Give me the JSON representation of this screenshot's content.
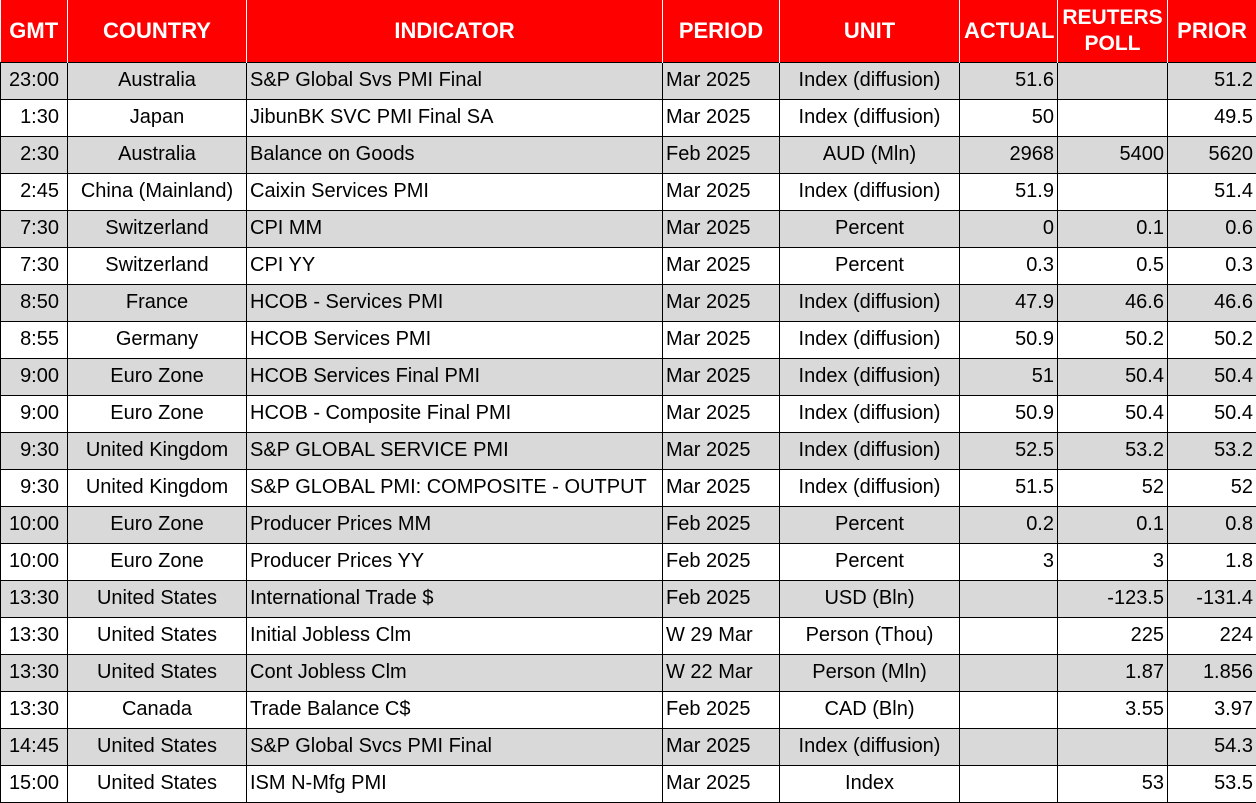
{
  "headers": {
    "gmt": "GMT",
    "country": "COUNTRY",
    "indicator": "INDICATOR",
    "period": "PERIOD",
    "unit": "UNIT",
    "actual": "ACTUAL",
    "reuters_poll_line1": "REUTERS",
    "reuters_poll_line2": "POLL",
    "prior": "PRIOR"
  },
  "colors": {
    "header_bg": "#ff0000",
    "header_text": "#ffffff",
    "row_shade": "#d9d9d9"
  },
  "rows": [
    {
      "gmt": "23:00",
      "country": "Australia",
      "indicator": "S&P Global Svs PMI Final",
      "period": "Mar 2025",
      "unit": "Index (diffusion)",
      "actual": "51.6",
      "poll": "",
      "prior": "51.2"
    },
    {
      "gmt": "1:30",
      "country": "Japan",
      "indicator": "JibunBK SVC PMI Final SA",
      "period": "Mar 2025",
      "unit": "Index (diffusion)",
      "actual": "50",
      "poll": "",
      "prior": "49.5"
    },
    {
      "gmt": "2:30",
      "country": "Australia",
      "indicator": "Balance on Goods",
      "period": "Feb 2025",
      "unit": "AUD (Mln)",
      "actual": "2968",
      "poll": "5400",
      "prior": "5620"
    },
    {
      "gmt": "2:45",
      "country": "China (Mainland)",
      "indicator": "Caixin Services PMI",
      "period": "Mar 2025",
      "unit": "Index (diffusion)",
      "actual": "51.9",
      "poll": "",
      "prior": "51.4"
    },
    {
      "gmt": "7:30",
      "country": "Switzerland",
      "indicator": "CPI MM",
      "period": "Mar 2025",
      "unit": "Percent",
      "actual": "0",
      "poll": "0.1",
      "prior": "0.6"
    },
    {
      "gmt": "7:30",
      "country": "Switzerland",
      "indicator": "CPI YY",
      "period": "Mar 2025",
      "unit": "Percent",
      "actual": "0.3",
      "poll": "0.5",
      "prior": "0.3"
    },
    {
      "gmt": "8:50",
      "country": "France",
      "indicator": "HCOB - Services PMI",
      "period": "Mar 2025",
      "unit": "Index (diffusion)",
      "actual": "47.9",
      "poll": "46.6",
      "prior": "46.6"
    },
    {
      "gmt": "8:55",
      "country": "Germany",
      "indicator": "HCOB Services PMI",
      "period": "Mar 2025",
      "unit": "Index (diffusion)",
      "actual": "50.9",
      "poll": "50.2",
      "prior": "50.2"
    },
    {
      "gmt": "9:00",
      "country": "Euro Zone",
      "indicator": "HCOB Services Final PMI",
      "period": "Mar 2025",
      "unit": "Index (diffusion)",
      "actual": "51",
      "poll": "50.4",
      "prior": "50.4"
    },
    {
      "gmt": "9:00",
      "country": "Euro Zone",
      "indicator": "HCOB - Composite Final PMI",
      "period": "Mar 2025",
      "unit": "Index (diffusion)",
      "actual": "50.9",
      "poll": "50.4",
      "prior": "50.4"
    },
    {
      "gmt": "9:30",
      "country": "United Kingdom",
      "indicator": "S&P GLOBAL SERVICE PMI",
      "period": "Mar 2025",
      "unit": "Index (diffusion)",
      "actual": "52.5",
      "poll": "53.2",
      "prior": "53.2"
    },
    {
      "gmt": "9:30",
      "country": "United Kingdom",
      "indicator": "S&P GLOBAL PMI: COMPOSITE - OUTPUT",
      "period": "Mar 2025",
      "unit": "Index (diffusion)",
      "actual": "51.5",
      "poll": "52",
      "prior": "52"
    },
    {
      "gmt": "10:00",
      "country": "Euro Zone",
      "indicator": "Producer Prices MM",
      "period": "Feb 2025",
      "unit": "Percent",
      "actual": "0.2",
      "poll": "0.1",
      "prior": "0.8"
    },
    {
      "gmt": "10:00",
      "country": "Euro Zone",
      "indicator": "Producer Prices YY",
      "period": "Feb 2025",
      "unit": "Percent",
      "actual": "3",
      "poll": "3",
      "prior": "1.8"
    },
    {
      "gmt": "13:30",
      "country": "United States",
      "indicator": "International Trade $",
      "period": "Feb 2025",
      "unit": "USD (Bln)",
      "actual": "",
      "poll": "-123.5",
      "prior": "-131.4"
    },
    {
      "gmt": "13:30",
      "country": "United States",
      "indicator": "Initial Jobless Clm",
      "period": "W 29 Mar",
      "unit": "Person (Thou)",
      "actual": "",
      "poll": "225",
      "prior": "224"
    },
    {
      "gmt": "13:30",
      "country": "United States",
      "indicator": "Cont Jobless Clm",
      "period": "W 22 Mar",
      "unit": "Person (Mln)",
      "actual": "",
      "poll": "1.87",
      "prior": "1.856"
    },
    {
      "gmt": "13:30",
      "country": "Canada",
      "indicator": "Trade Balance C$",
      "period": "Feb 2025",
      "unit": "CAD (Bln)",
      "actual": "",
      "poll": "3.55",
      "prior": "3.97"
    },
    {
      "gmt": "14:45",
      "country": "United States",
      "indicator": "S&P Global Svcs PMI Final",
      "period": "Mar 2025",
      "unit": "Index (diffusion)",
      "actual": "",
      "poll": "",
      "prior": "54.3"
    },
    {
      "gmt": "15:00",
      "country": "United States",
      "indicator": "ISM N-Mfg PMI",
      "period": "Mar 2025",
      "unit": "Index",
      "actual": "",
      "poll": "53",
      "prior": "53.5"
    }
  ]
}
